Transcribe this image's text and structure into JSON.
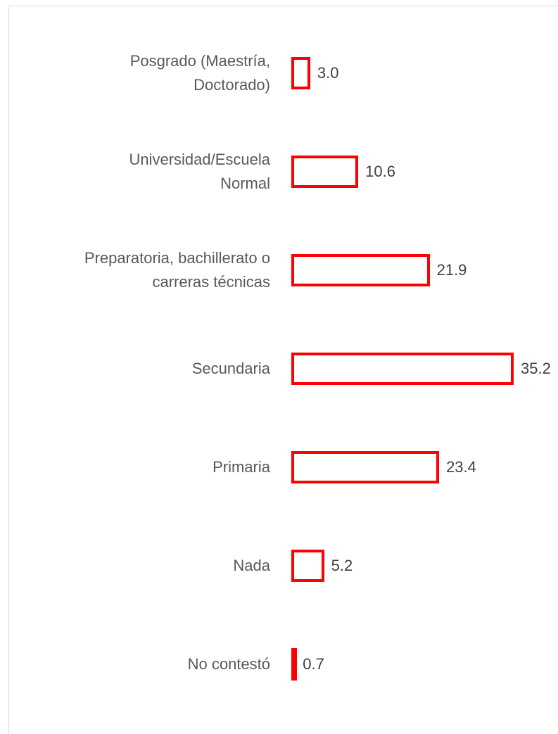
{
  "chart_data": {
    "type": "bar",
    "orientation": "horizontal",
    "categories": [
      "Posgrado (Maestría,\nDoctorado)",
      "Universidad/Escuela\nNormal",
      "Preparatoria, bachillerato o\ncarreras técnicas",
      "Secundaria",
      "Primaria",
      "Nada",
      "No contestó"
    ],
    "values": [
      3.0,
      10.6,
      21.9,
      35.2,
      23.4,
      5.2,
      0.7
    ],
    "value_labels": [
      "3.0",
      "10.6",
      "21.9",
      "35.2",
      "23.4",
      "5.2",
      "0.7"
    ],
    "color": "#ff0000"
  }
}
